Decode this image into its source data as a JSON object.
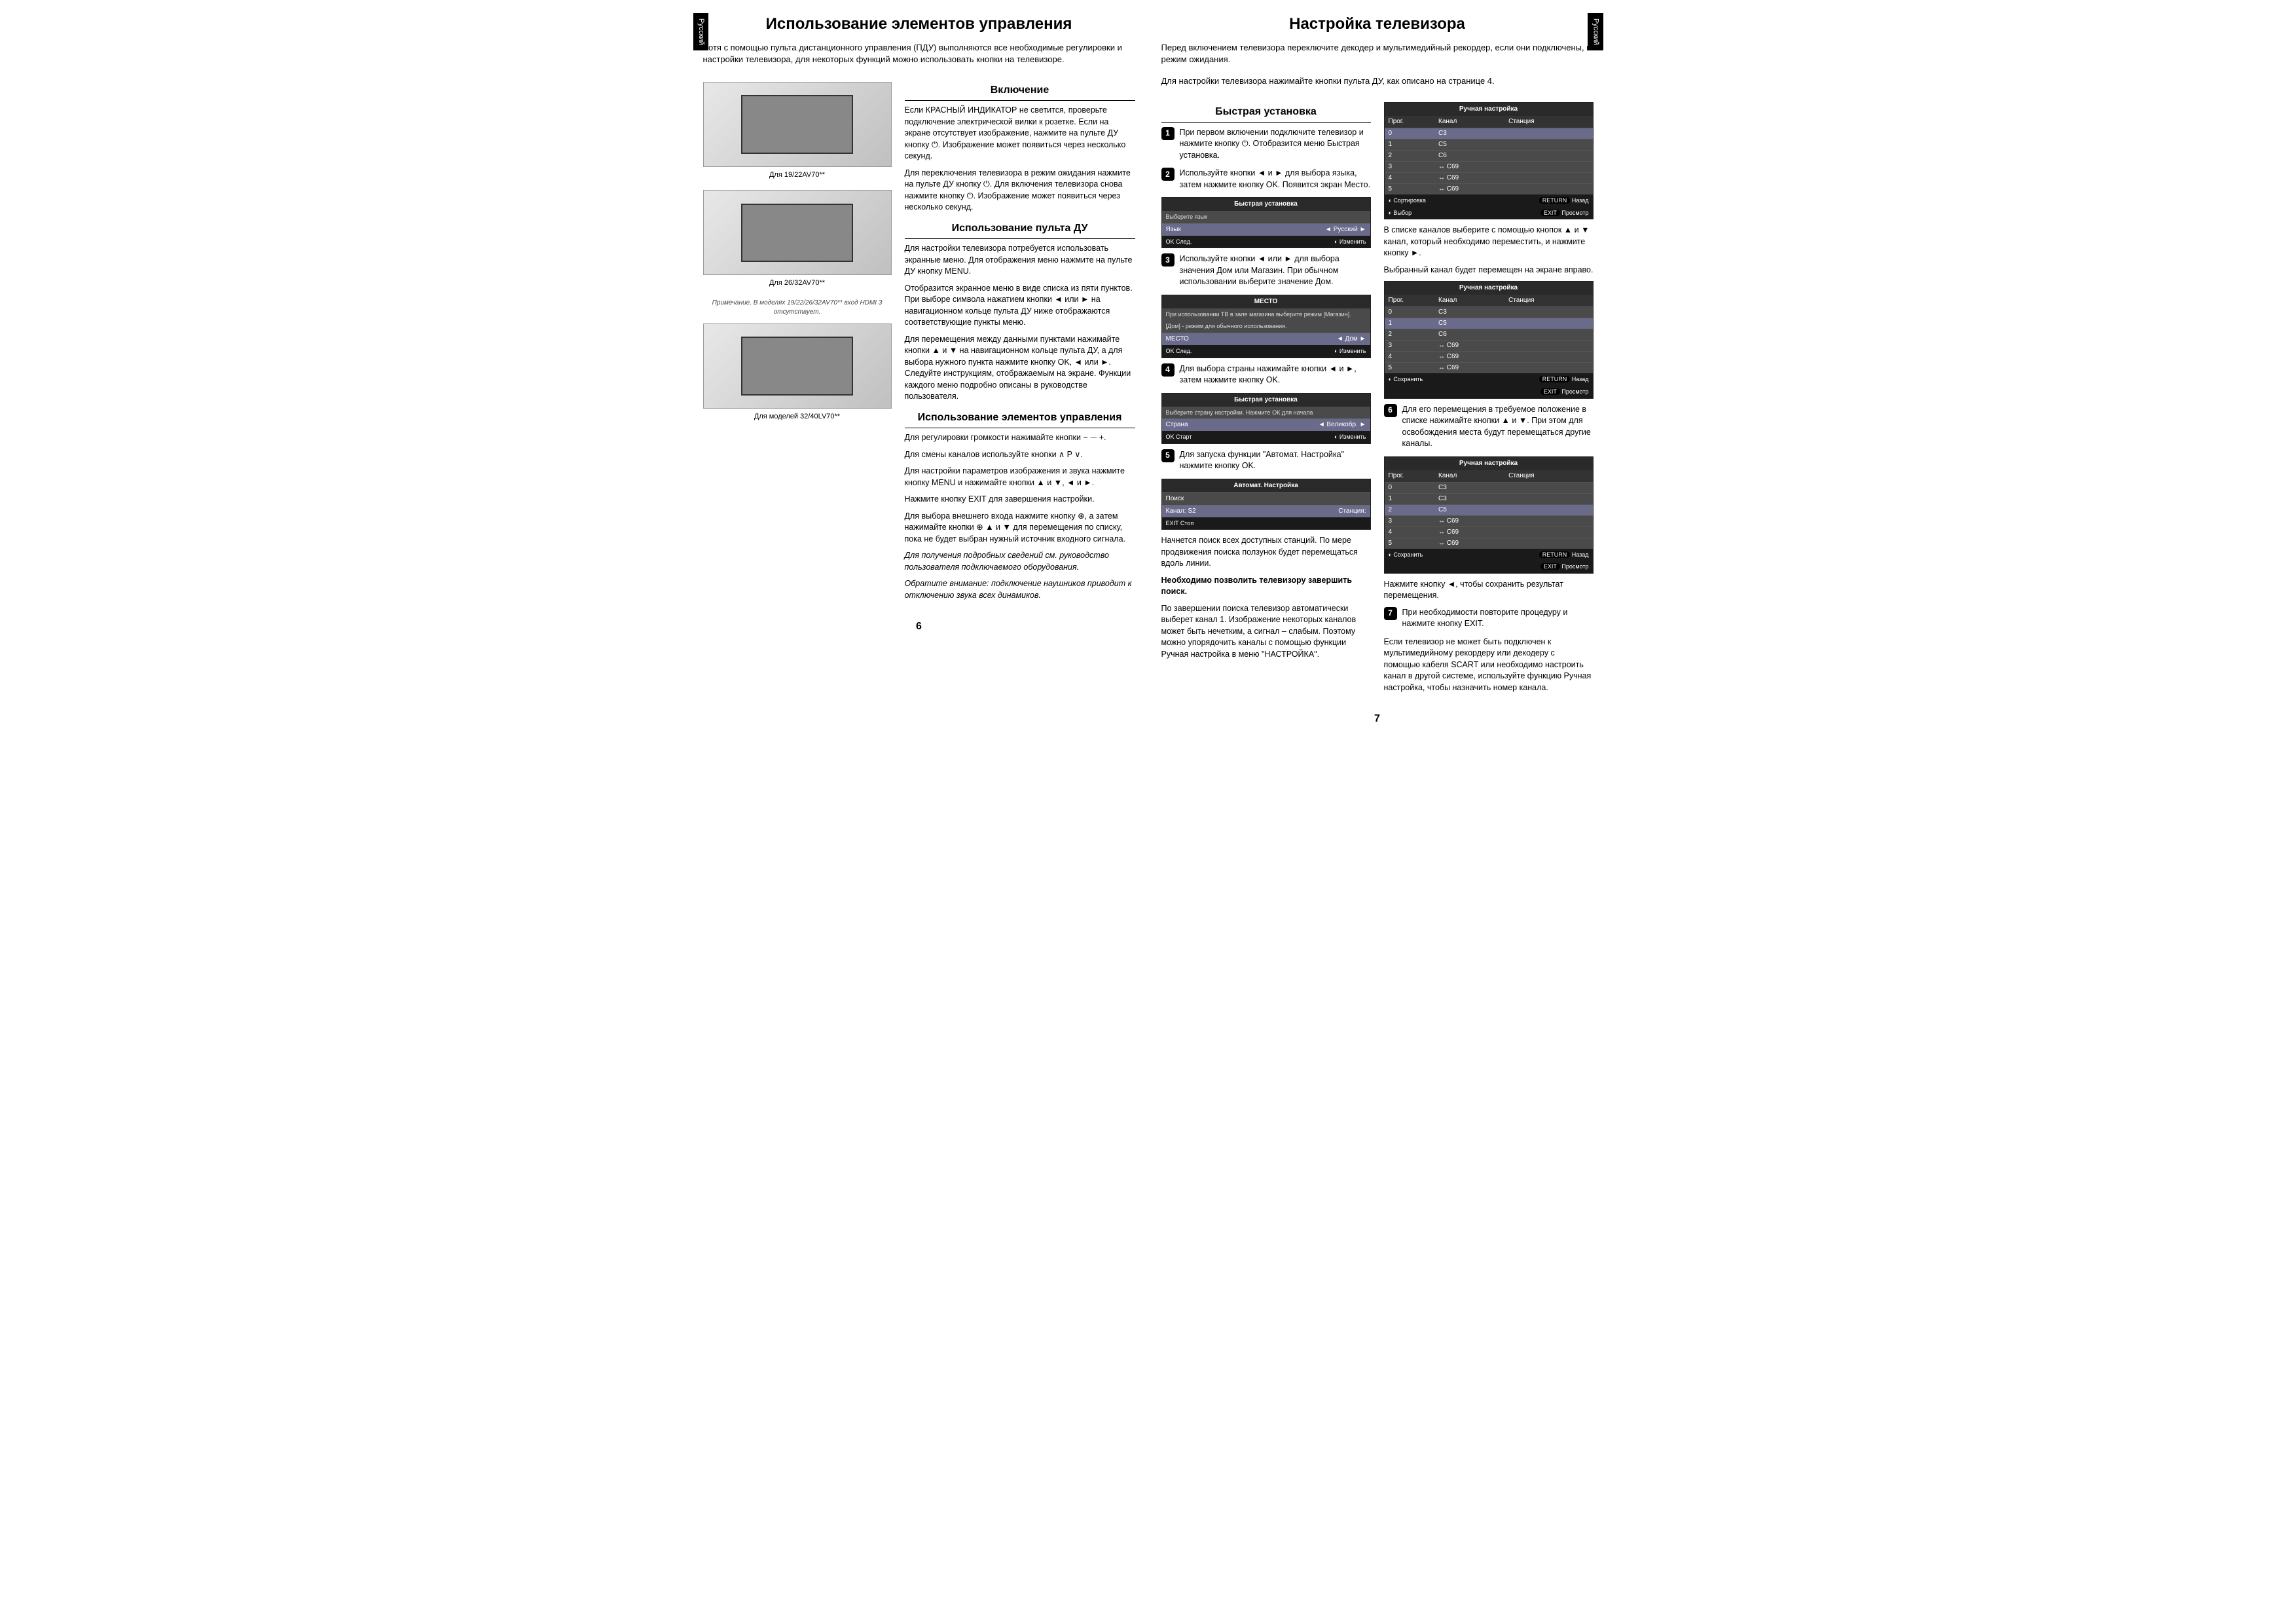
{
  "lang_tab": "Русский",
  "page_left": {
    "title": "Использование элементов управления",
    "intro": "Хотя с помощью пульта дистанционного управления (ПДУ) выполняются все необходимые регулировки и настройки телевизора, для некоторых функций можно использовать кнопки на телевизоре.",
    "tv1_caption": "Для 19/22AV70**",
    "tv2_caption": "Для 26/32AV70**",
    "tv_note": "Примечание. В моделях 19/22/26/32AV70** вход HDMI 3 отсутствует.",
    "tv3_caption": "Для моделей 32/40LV70**",
    "sec1_title": "Включение",
    "sec1_p1": "Если КРАСНЫЙ ИНДИКАТОР не светится, проверьте подключение электрической вилки к розетке. Если на экране отсутствует изображение, нажмите на пульте ДУ кнопку ⏻. Изображение может появиться через несколько секунд.",
    "sec1_p2": "Для переключения телевизора в режим ожидания нажмите на пульте ДУ кнопку ⏻. Для включения телевизора снова нажмите кнопку ⏻. Изображение может появиться через несколько секунд.",
    "sec2_title": "Использование пульта ДУ",
    "sec2_p1": "Для настройки телевизора потребуется использовать экранные меню. Для отображения меню нажмите на пульте ДУ кнопку MENU.",
    "sec2_p2": "Отобразится экранное меню в виде списка из пяти пунктов. При выборе символа нажатием кнопки ◄ или ► на навигационном кольце пульта ДУ ниже отображаются соответствующие пункты меню.",
    "sec2_p3": "Для перемещения между данными пунктами нажимайте кнопки ▲ и ▼ на навигационном кольце пульта ДУ, а для выбора нужного пункта нажмите кнопку OK, ◄ или ►. Следуйте инструкциям, отображаемым на экране. Функции каждого меню подробно описаны в руководстве пользователя.",
    "sec3_title": "Использование элементов управления",
    "sec3_p1": "Для регулировки громкости нажимайте кнопки − ⏤ +.",
    "sec3_p2": "Для смены каналов используйте кнопки ∧ P ∨.",
    "sec3_p3": "Для настройки параметров изображения и звука нажмите кнопку MENU и нажимайте кнопки ▲ и ▼, ◄ и ►.",
    "sec3_p4": "Нажмите кнопку EXIT для завершения настройки.",
    "sec3_p5": "Для выбора внешнего входа нажмите кнопку ⊕, а затем нажимайте кнопки ⊕ ▲ и ▼ для перемещения по списку, пока не будет выбран нужный источник входного сигнала.",
    "sec3_note1": "Для получения подробных сведений см. руководство пользователя подключаемого оборудования.",
    "sec3_note2": "Обратите внимание: подключение наушников приводит к отключению звука всех динамиков.",
    "page_num": "6"
  },
  "page_right": {
    "title": "Настройка телевизора",
    "intro1": "Перед включением телевизора переключите декодер и мультимедийный рекордер, если они подключены, в режим ожидания.",
    "intro2": "Для настройки телевизора нажимайте кнопки пульта ДУ, как описано на странице 4.",
    "sec_title": "Быстрая установка",
    "step1": "При первом включении подключите телевизор и нажмите кнопку ⏻. Отобразится меню Быстрая установка.",
    "step2": "Используйте кнопки ◄ и ► для выбора языка, затем нажмите кнопку OK. Появится экран Место.",
    "osd1": {
      "title": "Быстрая установка",
      "row_label": "Выберите язык",
      "lang_label": "Язык",
      "lang_value": "Русский",
      "f1": "OK След.",
      "f2": "◐ Изменить"
    },
    "step3": "Используйте кнопки ◄ или ► для выбора значения Дом или Магазин. При обычном использовании выберите значение Дом.",
    "osd2": {
      "title": "МЕСТО",
      "desc1": "При использовании ТВ в зале магазина выберите режим [Магазин].",
      "desc2": "[Дом] - режим для обычного использования.",
      "row_label": "МЕСТО",
      "row_value": "Дом",
      "f1": "OK След.",
      "f2": "◐ Изменить"
    },
    "step4": "Для выбора страны нажимайте кнопки ◄ и ►, затем нажмите кнопку OK.",
    "osd3": {
      "title": "Быстрая установка",
      "desc": "Выберите страну настройки. Нажмите ОК для начала",
      "row_label": "Страна",
      "row_value": "Великобр.",
      "f1": "OK Старт",
      "f2": "◐ Изменить"
    },
    "step5": "Для запуска функции \"Автомат. Настройка\" нажмите кнопку OK.",
    "osd4": {
      "title": "Автомат. Настройка",
      "row1": "Поиск",
      "row2_l": "Канал:",
      "row2_v": "S2",
      "row2_r": "Станция:",
      "f1": "EXIT Стоп"
    },
    "tail_p1": "Начнется поиск всех доступных станций. По мере продвижения поиска ползунок будет перемещаться вдоль линии.",
    "tail_p2": "Необходимо позволить телевизору завершить поиск.",
    "tail_p3": "По завершении поиска телевизор автоматически выберет канал 1. Изображение некоторых каналов может быть нечетким, а сигнал – слабым. Поэтому можно упорядочить каналы с помощью функции Ручная настройка в меню \"НАСТРОЙКА\".",
    "osd5": {
      "title": "Ручная настройка",
      "h1": "Прог.",
      "h2": "Канал",
      "h3": "Станция",
      "rows": [
        [
          "0",
          "C3",
          ""
        ],
        [
          "1",
          "C5",
          ""
        ],
        [
          "2",
          "C6",
          ""
        ],
        [
          "3",
          "↔  C69",
          ""
        ],
        [
          "4",
          "↔  C69",
          ""
        ],
        [
          "5",
          "↔  C69",
          ""
        ]
      ],
      "f1": "◐ Сортировка",
      "f2": "RETURN Назад",
      "f3": "◐ Выбор",
      "f4": "EXIT Просмотр"
    },
    "col2_p1": "В списке каналов выберите с помощью кнопок ▲ и ▼ канал, который необходимо переместить, и нажмите кнопку ►.",
    "col2_p2": "Выбранный канал будет перемещен на экране вправо.",
    "osd6": {
      "title": "Ручная настройка",
      "h1": "Прог.",
      "h2": "Канал",
      "h3": "Станция",
      "rows": [
        [
          "0",
          "C3",
          ""
        ],
        [
          "1",
          "        C5",
          ""
        ],
        [
          "2",
          "C6",
          ""
        ],
        [
          "3",
          "↔  C69",
          ""
        ],
        [
          "4",
          "↔  C69",
          ""
        ],
        [
          "5",
          "↔  C69",
          ""
        ]
      ],
      "f1": "◐ Сохранить",
      "f2": "RETURN Назад",
      "f4": "EXIT Просмотр"
    },
    "step6": "Для его перемещения в требуемое положение в списке нажимайте кнопки ▲ и ▼. При этом для освобождения места будут перемещаться другие каналы.",
    "osd7": {
      "title": "Ручная настройка",
      "h1": "Прог.",
      "h2": "Канал",
      "h3": "Станция",
      "rows": [
        [
          "0",
          "C3",
          ""
        ],
        [
          "1",
          "C3",
          ""
        ],
        [
          "2",
          "        C5",
          ""
        ],
        [
          "3",
          "↔  C69",
          ""
        ],
        [
          "4",
          "↔  C69",
          ""
        ],
        [
          "5",
          "↔  C69",
          ""
        ]
      ],
      "f1": "◐ Сохранить",
      "f2": "RETURN Назад",
      "f4": "EXIT Просмотр"
    },
    "col2_p3": "Нажмите кнопку ◄, чтобы сохранить результат перемещения.",
    "step7": "При необходимости повторите процедуру и нажмите кнопку EXIT.",
    "tail_p4": "Если телевизор не может быть подключен к мультимедийному рекордеру или декодеру с помощью кабеля SCART или необходимо настроить канал в другой системе, используйте функцию Ручная настройка, чтобы назначить номер канала.",
    "page_num": "7"
  }
}
